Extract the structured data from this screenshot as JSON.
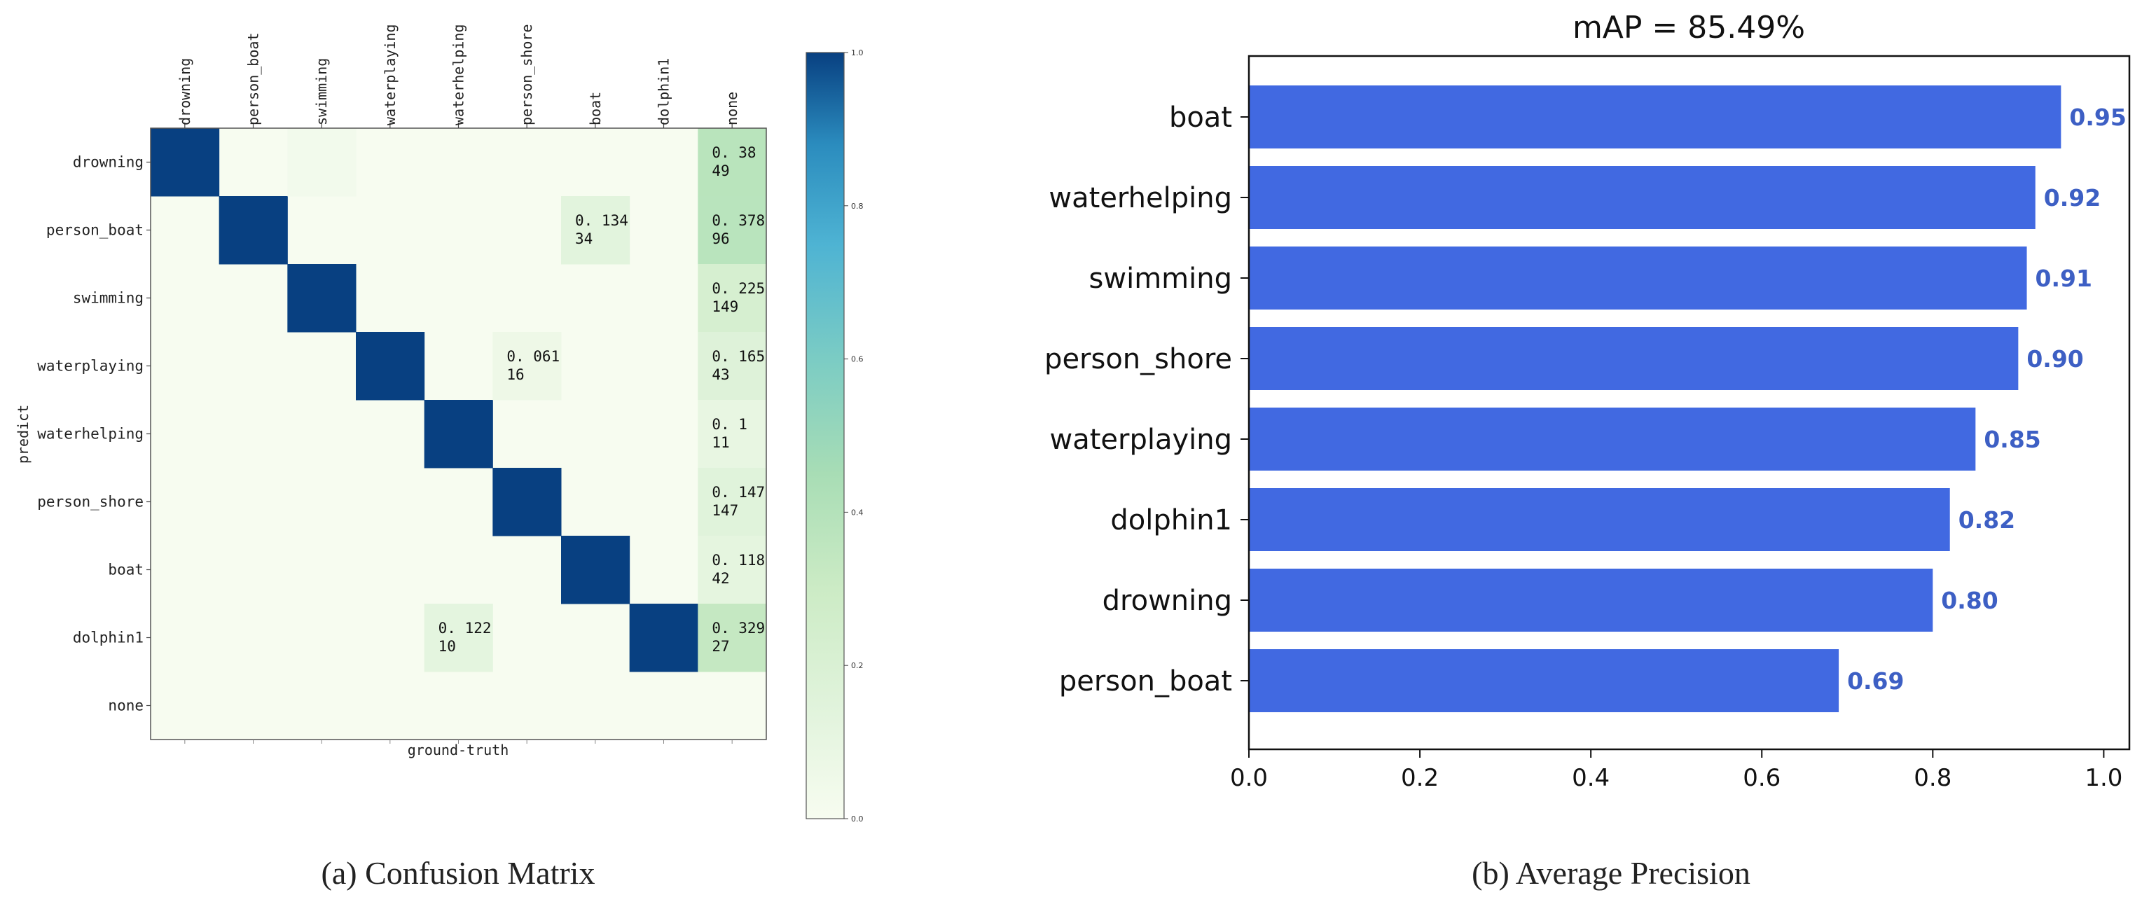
{
  "chart_data": [
    {
      "type": "heatmap",
      "caption": "(a) Confusion Matrix",
      "xlabel": "ground-truth",
      "ylabel": "predict",
      "x_labels": [
        "drowning",
        "person_boat",
        "swimming",
        "waterplaying",
        "waterhelping",
        "person_shore",
        "boat",
        "dolphin1",
        "none"
      ],
      "y_labels": [
        "drowning",
        "person_boat",
        "swimming",
        "waterplaying",
        "waterhelping",
        "person_shore",
        "boat",
        "dolphin1",
        "none"
      ],
      "colorbar_ticks": [
        "1.0",
        "0.8",
        "0.6",
        "0.4",
        "0.2",
        "0.0"
      ],
      "colorbar_range": [
        0,
        1
      ],
      "cells": [
        {
          "row": 0,
          "col": 0,
          "value": 1.0
        },
        {
          "row": 1,
          "col": 1,
          "value": 1.0
        },
        {
          "row": 2,
          "col": 2,
          "value": 1.0
        },
        {
          "row": 3,
          "col": 3,
          "value": 1.0
        },
        {
          "row": 4,
          "col": 4,
          "value": 1.0
        },
        {
          "row": 5,
          "col": 5,
          "value": 1.0
        },
        {
          "row": 6,
          "col": 6,
          "value": 1.0
        },
        {
          "row": 7,
          "col": 7,
          "value": 1.0
        },
        {
          "row": 0,
          "col": 2,
          "value": 0.03
        },
        {
          "row": 0,
          "col": 8,
          "value": 0.38,
          "label1": "0. 38",
          "label2": "49"
        },
        {
          "row": 1,
          "col": 6,
          "value": 0.134,
          "label1": "0. 134",
          "label2": "34"
        },
        {
          "row": 1,
          "col": 8,
          "value": 0.378,
          "label1": "0. 378",
          "label2": "96"
        },
        {
          "row": 2,
          "col": 8,
          "value": 0.225,
          "label1": "0. 225",
          "label2": "149"
        },
        {
          "row": 3,
          "col": 5,
          "value": 0.061,
          "label1": "0. 061",
          "label2": "16"
        },
        {
          "row": 3,
          "col": 8,
          "value": 0.165,
          "label1": "0. 165",
          "label2": "43"
        },
        {
          "row": 4,
          "col": 8,
          "value": 0.1,
          "label1": "0. 1",
          "label2": "11"
        },
        {
          "row": 5,
          "col": 8,
          "value": 0.147,
          "label1": "0. 147",
          "label2": "147"
        },
        {
          "row": 6,
          "col": 8,
          "value": 0.118,
          "label1": "0. 118",
          "label2": "42"
        },
        {
          "row": 7,
          "col": 4,
          "value": 0.122,
          "label1": "0. 122",
          "label2": "10"
        },
        {
          "row": 7,
          "col": 8,
          "value": 0.329,
          "label1": "0. 329",
          "label2": "27"
        }
      ]
    },
    {
      "type": "bar",
      "orientation": "horizontal",
      "title": "mAP = 85.49%",
      "caption": "(b) Average Precision",
      "categories": [
        "boat",
        "waterhelping",
        "swimming",
        "person_shore",
        "waterplaying",
        "dolphin1",
        "drowning",
        "person_boat"
      ],
      "values": [
        0.95,
        0.92,
        0.91,
        0.9,
        0.85,
        0.82,
        0.8,
        0.69
      ],
      "value_labels": [
        "0.95",
        "0.92",
        "0.91",
        "0.90",
        "0.85",
        "0.82",
        "0.80",
        "0.69"
      ],
      "x_ticks": [
        "0.0",
        "0.2",
        "0.4",
        "0.6",
        "0.8",
        "1.0"
      ],
      "xlim": [
        0,
        1.03
      ],
      "bar_color": "#4169e1",
      "label_color": "#3d5fc4"
    }
  ]
}
